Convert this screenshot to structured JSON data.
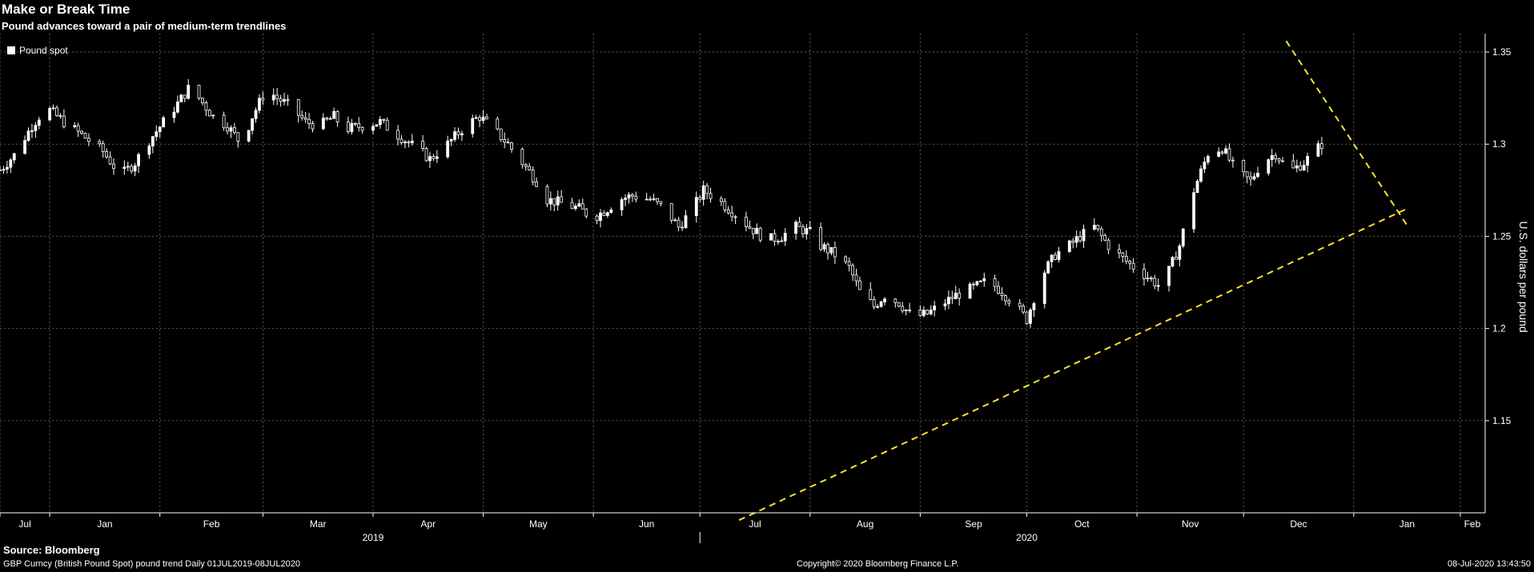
{
  "header": {
    "title": "Make or Break Time",
    "subtitle": "Pound advances toward a pair of medium-term trendlines"
  },
  "footer": {
    "source": "Source: Bloomberg",
    "description": "GBP Curncy (British Pound Spot) pound trend  Daily 01JUL2019-08JUL2020",
    "copyright": "Copyright© 2020 Bloomberg Finance L.P.",
    "timestamp": "08-Jul-2020 13:43:50"
  },
  "colors": {
    "background": "#000000",
    "candle": "#ffffff",
    "trendline": "#ffe033",
    "grid": "#5a5a5a"
  },
  "chart_data": {
    "type": "candlestick",
    "legend": [
      "Pound spot"
    ],
    "legend_position": "top-left",
    "ylabel": "U.S. dollars per pound",
    "ylim": [
      1.1,
      1.36
    ],
    "yticks": [
      1.15,
      1.2,
      1.25,
      1.3,
      1.35
    ],
    "y_axis_side": "right",
    "grid": true,
    "xlim": [
      "2019-07-01",
      "2020-08-22"
    ],
    "xticks": [
      {
        "label": "Jul",
        "date": "2019-07-01"
      },
      {
        "label": "Jan",
        "date": "2019-07-15"
      },
      {
        "label": "Feb",
        "date": "2019-08-15"
      },
      {
        "label": "Mar",
        "date": "2019-09-13"
      },
      {
        "label": "Apr",
        "date": "2019-10-14"
      },
      {
        "label": "May",
        "date": "2019-11-14"
      },
      {
        "label": "Jun",
        "date": "2019-12-15"
      },
      {
        "label": "Jul",
        "date": "2020-01-14"
      },
      {
        "label": "Aug",
        "date": "2020-02-14"
      },
      {
        "label": "Sep",
        "date": "2020-03-16"
      },
      {
        "label": "Oct",
        "date": "2020-04-15"
      },
      {
        "label": "Nov",
        "date": "2020-05-16"
      },
      {
        "label": "Dec",
        "date": "2020-06-15"
      },
      {
        "label": "Jan",
        "date": "2020-07-16"
      },
      {
        "label": "Feb",
        "date": "2020-08-15"
      }
    ],
    "year_labels": [
      {
        "label": "2019",
        "date": "2019-10-14"
      },
      {
        "label": "2020",
        "date": "2020-04-15"
      }
    ],
    "close_series": [
      [
        "2019-07-01",
        1.286
      ],
      [
        "2019-07-05",
        1.294
      ],
      [
        "2019-07-10",
        1.31
      ],
      [
        "2019-07-14",
        1.32
      ],
      [
        "2019-07-19",
        1.312
      ],
      [
        "2019-07-24",
        1.305
      ],
      [
        "2019-07-30",
        1.296
      ],
      [
        "2019-08-04",
        1.283
      ],
      [
        "2019-08-08",
        1.29
      ],
      [
        "2019-08-12",
        1.302
      ],
      [
        "2019-08-16",
        1.312
      ],
      [
        "2019-08-20",
        1.322
      ],
      [
        "2019-08-23",
        1.33
      ],
      [
        "2019-08-26",
        1.325
      ],
      [
        "2019-08-30",
        1.315
      ],
      [
        "2019-09-03",
        1.31
      ],
      [
        "2019-09-07",
        1.3
      ],
      [
        "2019-09-10",
        1.315
      ],
      [
        "2019-09-14",
        1.33
      ],
      [
        "2019-09-17",
        1.325
      ],
      [
        "2019-09-21",
        1.32
      ],
      [
        "2019-09-25",
        1.312
      ],
      [
        "2019-09-29",
        1.31
      ],
      [
        "2019-10-03",
        1.315
      ],
      [
        "2019-10-06",
        1.308
      ],
      [
        "2019-10-11",
        1.31
      ],
      [
        "2019-10-16",
        1.312
      ],
      [
        "2019-10-21",
        1.305
      ],
      [
        "2019-10-26",
        1.298
      ],
      [
        "2019-10-30",
        1.292
      ],
      [
        "2019-11-04",
        1.3
      ],
      [
        "2019-11-09",
        1.31
      ],
      [
        "2019-11-13",
        1.315
      ],
      [
        "2019-11-17",
        1.308
      ],
      [
        "2019-11-21",
        1.3
      ],
      [
        "2019-11-25",
        1.29
      ],
      [
        "2019-11-29",
        1.28
      ],
      [
        "2019-12-02",
        1.27
      ],
      [
        "2019-12-06",
        1.268
      ],
      [
        "2019-12-11",
        1.265
      ],
      [
        "2019-12-15",
        1.26
      ],
      [
        "2019-12-19",
        1.265
      ],
      [
        "2019-12-22",
        1.27
      ],
      [
        "2019-12-26",
        1.272
      ],
      [
        "2019-12-31",
        1.27
      ],
      [
        "2020-01-04",
        1.265
      ],
      [
        "2020-01-08",
        1.255
      ],
      [
        "2020-01-12",
        1.265
      ],
      [
        "2020-01-15",
        1.275
      ],
      [
        "2020-01-19",
        1.27
      ],
      [
        "2020-01-24",
        1.262
      ],
      [
        "2020-01-28",
        1.255
      ],
      [
        "2020-02-02",
        1.248
      ],
      [
        "2020-02-06",
        1.25
      ],
      [
        "2020-02-10",
        1.255
      ],
      [
        "2020-02-14",
        1.252
      ],
      [
        "2020-02-17",
        1.245
      ],
      [
        "2020-02-21",
        1.24
      ],
      [
        "2020-02-25",
        1.233
      ],
      [
        "2020-02-28",
        1.22
      ],
      [
        "2020-03-03",
        1.212
      ],
      [
        "2020-03-06",
        1.218
      ],
      [
        "2020-03-10",
        1.214
      ],
      [
        "2020-03-14",
        1.206
      ],
      [
        "2020-03-18",
        1.208
      ],
      [
        "2020-03-22",
        1.213
      ],
      [
        "2020-03-26",
        1.218
      ],
      [
        "2020-03-31",
        1.222
      ],
      [
        "2020-04-04",
        1.226
      ],
      [
        "2020-04-08",
        1.22
      ],
      [
        "2020-04-12",
        1.212
      ],
      [
        "2020-04-15",
        1.205
      ],
      [
        "2020-04-19",
        1.228
      ],
      [
        "2020-04-23",
        1.24
      ],
      [
        "2020-04-27",
        1.245
      ],
      [
        "2020-04-30",
        1.25
      ],
      [
        "2020-05-04",
        1.255
      ],
      [
        "2020-05-08",
        1.245
      ],
      [
        "2020-05-12",
        1.238
      ],
      [
        "2020-05-16",
        1.232
      ],
      [
        "2020-05-19",
        1.228
      ],
      [
        "2020-05-23",
        1.222
      ],
      [
        "2020-05-28",
        1.245
      ],
      [
        "2020-06-01",
        1.275
      ],
      [
        "2020-06-05",
        1.295
      ],
      [
        "2020-06-09",
        1.298
      ],
      [
        "2020-06-13",
        1.285
      ],
      [
        "2020-06-17",
        1.28
      ],
      [
        "2020-06-20",
        1.29
      ],
      [
        "2020-06-24",
        1.295
      ],
      [
        "2020-06-28",
        1.285
      ],
      [
        "2020-07-02",
        1.29
      ],
      [
        "2020-07-07",
        1.3
      ]
    ],
    "trendlines": [
      {
        "name": "upper",
        "style": "dashed",
        "from": [
          "2020-06-27",
          1.356
        ],
        "to": [
          "2020-07-31",
          1.256
        ]
      },
      {
        "name": "lower",
        "style": "dashed",
        "from": [
          "2020-01-25",
          1.096
        ],
        "to": [
          "2020-07-31",
          1.265
        ]
      }
    ]
  }
}
